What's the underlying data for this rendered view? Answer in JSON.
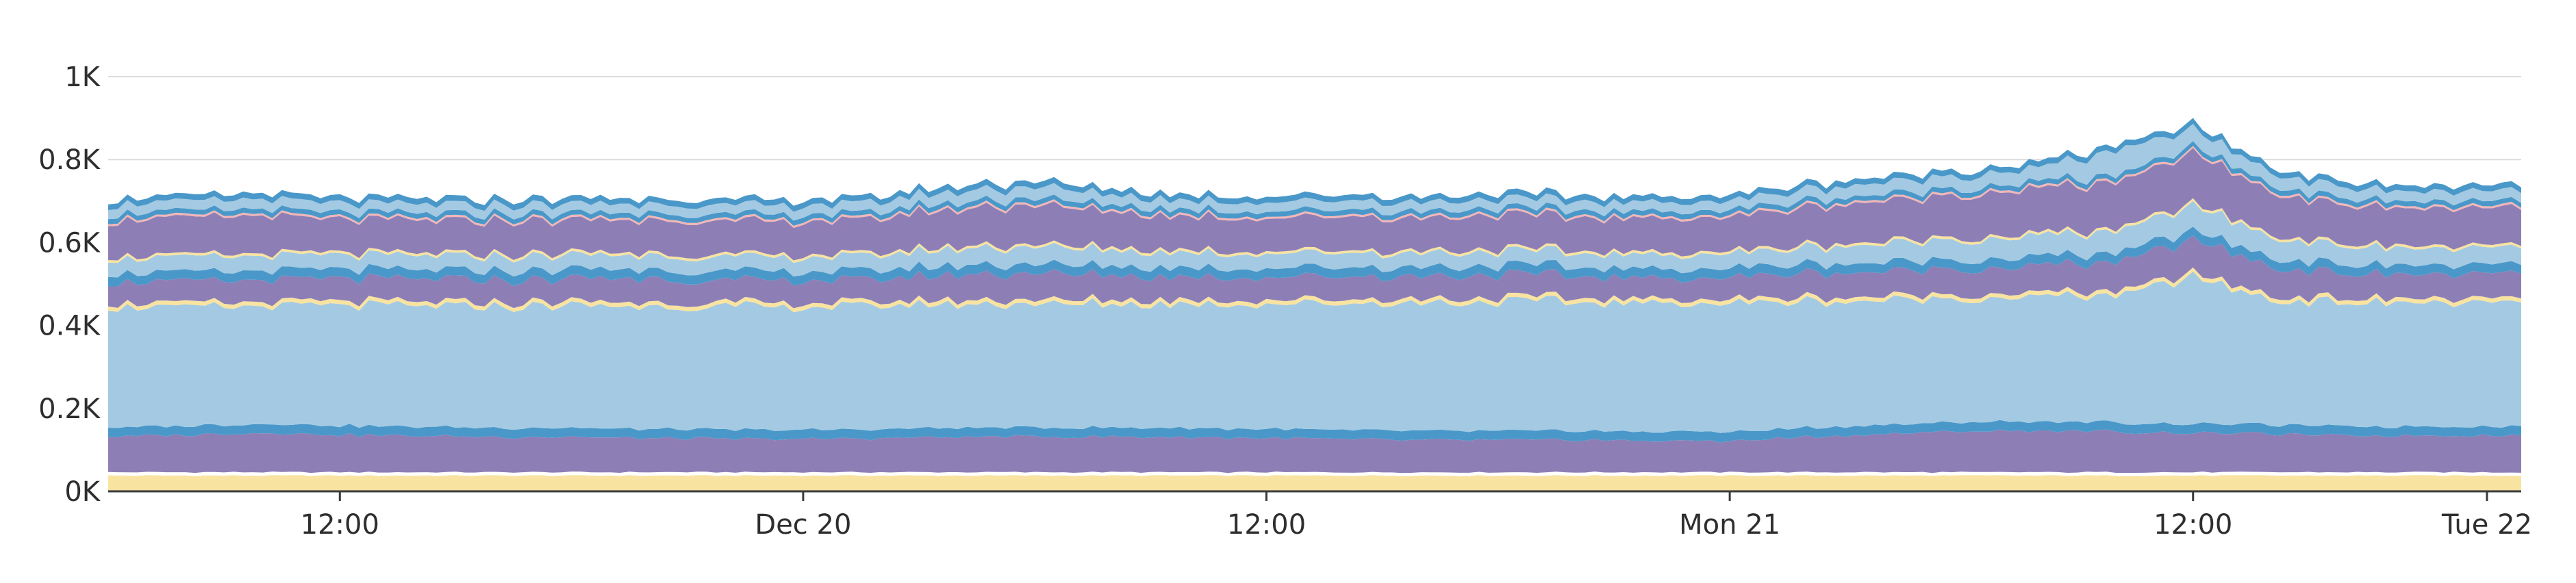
{
  "chart_data": {
    "type": "area",
    "stacked": true,
    "title": "",
    "xlabel": "",
    "ylabel": "",
    "ylim": [
      0,
      1000
    ],
    "grid": true,
    "legend": "none",
    "y_ticks": [
      {
        "value": 0,
        "label": "0K"
      },
      {
        "value": 200,
        "label": "0.2K"
      },
      {
        "value": 400,
        "label": "0.4K"
      },
      {
        "value": 600,
        "label": "0.6K"
      },
      {
        "value": 800,
        "label": "0.8K"
      },
      {
        "value": 1000,
        "label": "1K"
      }
    ],
    "x_range_hours": [
      -18,
      44.5
    ],
    "x_ticks": [
      {
        "hour": -12,
        "label": "12:00"
      },
      {
        "hour": 0,
        "label": "Dec 20"
      },
      {
        "hour": 12,
        "label": "12:00"
      },
      {
        "hour": 24,
        "label": "Mon 21"
      },
      {
        "hour": 36,
        "label": "12:00"
      },
      {
        "hour": 48,
        "label": "Tue 22"
      }
    ],
    "x_hours": [
      -18,
      -16,
      -14,
      -12,
      -10,
      -8,
      -6,
      -4,
      -2,
      0,
      2,
      4,
      6,
      8,
      10,
      12,
      14,
      16,
      18,
      20,
      22,
      24,
      26,
      28,
      30,
      32,
      34,
      36,
      38,
      40,
      42,
      44
    ],
    "series": [
      {
        "color": "#f8e3a1",
        "values": [
          38,
          38,
          38,
          38,
          38,
          38,
          38,
          38,
          38,
          38,
          38,
          38,
          38,
          38,
          38,
          38,
          38,
          38,
          38,
          38,
          38,
          38,
          38,
          38,
          38,
          38,
          38,
          38,
          38,
          38,
          38,
          38
        ]
      },
      {
        "color": "#ffffff",
        "values": [
          8,
          8,
          8,
          8,
          8,
          8,
          8,
          8,
          8,
          8,
          8,
          8,
          8,
          8,
          8,
          8,
          8,
          8,
          8,
          8,
          8,
          8,
          8,
          8,
          8,
          8,
          8,
          8,
          8,
          8,
          8,
          8
        ]
      },
      {
        "color": "#8d7fb6",
        "values": [
          85,
          90,
          95,
          90,
          88,
          85,
          85,
          82,
          80,
          80,
          82,
          85,
          86,
          85,
          84,
          82,
          80,
          78,
          78,
          78,
          76,
          75,
          85,
          92,
          98,
          100,
          98,
          95,
          92,
          88,
          88,
          90
        ]
      },
      {
        "color": "#4a98c9",
        "values": [
          22,
          22,
          22,
          22,
          22,
          22,
          22,
          22,
          22,
          22,
          22,
          22,
          22,
          22,
          22,
          22,
          22,
          22,
          22,
          22,
          22,
          22,
          22,
          22,
          22,
          22,
          22,
          22,
          22,
          22,
          22,
          22
        ]
      },
      {
        "color": "#a3cae2",
        "values": [
          290,
          285,
          285,
          290,
          290,
          293,
          295,
          295,
          295,
          295,
          298,
          298,
          298,
          298,
          300,
          302,
          305,
          308,
          310,
          310,
          310,
          310,
          305,
          300,
          298,
          302,
          305,
          355,
          300,
          298,
          300,
          296
        ]
      },
      {
        "color": "#f8e3a1",
        "values": [
          10,
          10,
          10,
          10,
          10,
          10,
          10,
          10,
          10,
          10,
          10,
          10,
          10,
          10,
          10,
          10,
          10,
          10,
          10,
          10,
          10,
          10,
          10,
          10,
          10,
          10,
          10,
          10,
          10,
          10,
          10,
          10
        ]
      },
      {
        "color": "#8d7fb6",
        "values": [
          50,
          52,
          52,
          55,
          55,
          55,
          55,
          58,
          52,
          55,
          55,
          60,
          65,
          60,
          55,
          55,
          55,
          55,
          55,
          52,
          50,
          52,
          58,
          60,
          62,
          65,
          70,
          80,
          70,
          60,
          58,
          60
        ]
      },
      {
        "color": "#4a98c9",
        "values": [
          22,
          22,
          22,
          22,
          22,
          22,
          22,
          22,
          22,
          22,
          22,
          22,
          22,
          22,
          22,
          22,
          22,
          22,
          22,
          22,
          22,
          22,
          22,
          22,
          22,
          22,
          22,
          22,
          22,
          22,
          22,
          22
        ]
      },
      {
        "color": "#a3cae2",
        "values": [
          35,
          36,
          36,
          34,
          34,
          34,
          34,
          34,
          34,
          34,
          36,
          40,
          42,
          38,
          36,
          35,
          35,
          34,
          34,
          34,
          34,
          35,
          40,
          45,
          48,
          50,
          52,
          60,
          50,
          44,
          40,
          40
        ]
      },
      {
        "color": "#f8e3a1",
        "values": [
          6,
          6,
          6,
          6,
          6,
          6,
          6,
          6,
          6,
          6,
          6,
          6,
          6,
          6,
          6,
          6,
          6,
          6,
          6,
          6,
          6,
          6,
          6,
          6,
          6,
          6,
          6,
          6,
          6,
          6,
          6,
          6
        ]
      },
      {
        "color": "#8d7fb6",
        "values": [
          85,
          88,
          90,
          80,
          78,
          78,
          78,
          80,
          80,
          80,
          82,
          90,
          95,
          85,
          80,
          80,
          80,
          80,
          80,
          80,
          80,
          82,
          90,
          98,
          102,
          108,
          110,
          120,
          100,
          92,
          90,
          90
        ]
      },
      {
        "color": "#f4b6b6",
        "values": [
          5,
          5,
          5,
          5,
          5,
          5,
          5,
          5,
          5,
          5,
          5,
          5,
          5,
          5,
          5,
          5,
          5,
          5,
          5,
          5,
          5,
          5,
          5,
          5,
          5,
          5,
          5,
          5,
          5,
          5,
          5,
          5
        ]
      },
      {
        "color": "#4a98c9",
        "values": [
          12,
          12,
          12,
          12,
          12,
          12,
          12,
          12,
          12,
          12,
          12,
          12,
          12,
          12,
          12,
          12,
          12,
          12,
          12,
          12,
          12,
          12,
          12,
          12,
          12,
          12,
          12,
          12,
          12,
          12,
          12,
          12
        ]
      },
      {
        "color": "#a3cae2",
        "values": [
          22,
          23,
          24,
          22,
          22,
          22,
          22,
          22,
          22,
          22,
          24,
          26,
          28,
          24,
          22,
          22,
          22,
          22,
          22,
          22,
          22,
          22,
          26,
          28,
          30,
          32,
          60,
          40,
          30,
          26,
          24,
          24
        ]
      },
      {
        "color": "#4a98c9",
        "values": [
          14,
          14,
          14,
          14,
          14,
          14,
          14,
          14,
          14,
          14,
          14,
          14,
          14,
          14,
          14,
          14,
          14,
          14,
          14,
          14,
          14,
          14,
          14,
          14,
          14,
          14,
          14,
          14,
          14,
          14,
          14,
          14
        ]
      }
    ]
  }
}
